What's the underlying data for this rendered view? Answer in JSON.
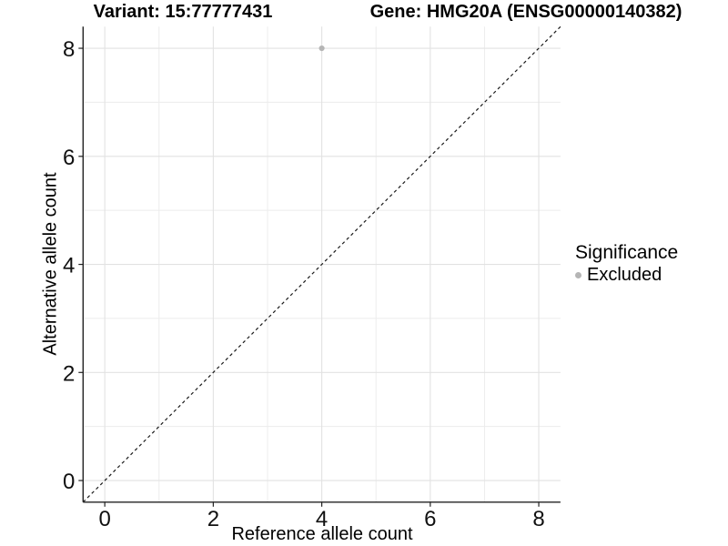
{
  "titles": {
    "variant": "Variant: 15:77777431",
    "gene": "Gene: HMG20A (ENSG00000140382)"
  },
  "axes": {
    "x": {
      "label": "Reference allele count"
    },
    "y": {
      "label": "Alternative allele count"
    }
  },
  "legend": {
    "title": "Significance",
    "items": [
      {
        "label": "Excluded",
        "color": "#b5b5b5"
      }
    ]
  },
  "colors": {
    "background": "#ffffff",
    "grid_major": "#e2e2e2",
    "grid_minor": "#ececec",
    "axis_line": "#222222",
    "tick_text": "#111111",
    "reference_line": "#1a1a1a",
    "point": "#b5b5b5"
  },
  "chart_data": {
    "type": "scatter",
    "title": "Variant: 15:77777431 | Gene: HMG20A (ENSG00000140382)",
    "xlabel": "Reference allele count",
    "ylabel": "Alternative allele count",
    "xlim": [
      -0.4,
      8.4
    ],
    "ylim": [
      -0.4,
      8.4
    ],
    "x_ticks": [
      0,
      2,
      4,
      6,
      8
    ],
    "y_ticks": [
      0,
      2,
      4,
      6,
      8
    ],
    "x_minor": [
      1,
      3,
      5,
      7
    ],
    "y_minor": [
      1,
      3,
      5,
      7
    ],
    "grid": true,
    "legend_position": "right",
    "legend_title": "Significance",
    "series": [
      {
        "name": "Excluded",
        "color": "#b5b5b5",
        "points": [
          {
            "x": 4,
            "y": 8
          }
        ]
      }
    ],
    "reference_line": {
      "type": "identity",
      "style": "dashed",
      "from": [
        -0.4,
        -0.4
      ],
      "to": [
        8.4,
        8.4
      ]
    }
  }
}
